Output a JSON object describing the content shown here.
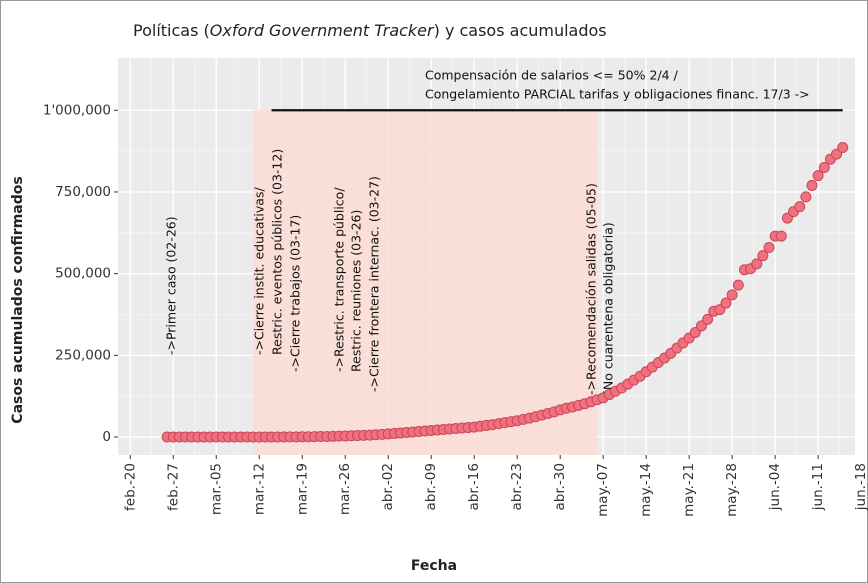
{
  "chart_data": {
    "type": "scatter",
    "title": [
      "Políticas (",
      "Oxford Government Tracker",
      ") y casos acumulados"
    ],
    "xlabel": "Fecha",
    "ylabel": "Casos acumulados confirmados",
    "xlim": [
      "02-18",
      "06-17"
    ],
    "xticks": [
      {
        "value": "02-20",
        "label": "feb.-20"
      },
      {
        "value": "02-27",
        "label": "feb.-27"
      },
      {
        "value": "03-05",
        "label": "mar.-05"
      },
      {
        "value": "03-12",
        "label": "mar.-12"
      },
      {
        "value": "03-19",
        "label": "mar.-19"
      },
      {
        "value": "03-26",
        "label": "mar.-26"
      },
      {
        "value": "04-02",
        "label": "abr.-02"
      },
      {
        "value": "04-09",
        "label": "abr.-09"
      },
      {
        "value": "04-16",
        "label": "abr.-16"
      },
      {
        "value": "04-23",
        "label": "abr.-23"
      },
      {
        "value": "04-30",
        "label": "abr.-30"
      },
      {
        "value": "05-07",
        "label": "may.-07"
      },
      {
        "value": "05-14",
        "label": "may.-14"
      },
      {
        "value": "05-21",
        "label": "may.-21"
      },
      {
        "value": "05-28",
        "label": "may.-28"
      },
      {
        "value": "06-04",
        "label": "jun.-04"
      },
      {
        "value": "06-11",
        "label": "jun.-11"
      },
      {
        "value": "06-18",
        "label": "jun.-18"
      }
    ],
    "ylim": [
      -55000,
      1160000
    ],
    "yticks": [
      0,
      {
        "value": 250000,
        "label": "250,000"
      },
      {
        "value": 500000,
        "label": "500,000"
      },
      {
        "value": 750000,
        "label": "750,000"
      },
      {
        "value": 1000000,
        "label": "1'000,000"
      }
    ],
    "grid": true,
    "color": "#f07080",
    "shaded": {
      "from": "03-11",
      "to": "05-06",
      "color": "#fddcd5"
    },
    "hline": {
      "from": "03-14",
      "to": "06-15",
      "y": 1000000
    },
    "top_note": [
      "Compensación de salarios <= 50% 2/4 /",
      "Congelamiento PARCIAL tarifas y obligaciones financ. 17/3 ->"
    ],
    "annotations": [
      "->Primer caso (02-26)",
      "->Cierre instit. educativas/",
      "Restric. eventos públicos (03-12)",
      "->Cierre trabajos (03-17)",
      "->Restric. transporte público/",
      "Restric. reuniones (03-26)",
      "->Cierre frontera internac. (03-27)",
      "->Recomendación salidas (05-05)",
      "(No cuarentena obligatoria)"
    ],
    "x": [
      "02-26",
      "02-27",
      "02-28",
      "02-29",
      "03-01",
      "03-02",
      "03-03",
      "03-04",
      "03-05",
      "03-06",
      "03-07",
      "03-08",
      "03-09",
      "03-10",
      "03-11",
      "03-12",
      "03-13",
      "03-14",
      "03-15",
      "03-16",
      "03-17",
      "03-18",
      "03-19",
      "03-20",
      "03-21",
      "03-22",
      "03-23",
      "03-24",
      "03-25",
      "03-26",
      "03-27",
      "03-28",
      "03-29",
      "03-30",
      "03-31",
      "04-01",
      "04-02",
      "04-03",
      "04-04",
      "04-05",
      "04-06",
      "04-07",
      "04-08",
      "04-09",
      "04-10",
      "04-11",
      "04-12",
      "04-13",
      "04-14",
      "04-15",
      "04-16",
      "04-17",
      "04-18",
      "04-19",
      "04-20",
      "04-21",
      "04-22",
      "04-23",
      "04-24",
      "04-25",
      "04-26",
      "04-27",
      "04-28",
      "04-29",
      "04-30",
      "05-01",
      "05-02",
      "05-03",
      "05-04",
      "05-05",
      "05-06",
      "05-07",
      "05-08",
      "05-09",
      "05-10",
      "05-11",
      "05-12",
      "05-13",
      "05-14",
      "05-15",
      "05-16",
      "05-17",
      "05-18",
      "05-19",
      "05-20",
      "05-21",
      "05-22",
      "05-23",
      "05-24",
      "05-25",
      "05-26",
      "05-27",
      "05-28",
      "05-29",
      "05-30",
      "05-31",
      "06-01",
      "06-02",
      "06-03",
      "06-04",
      "06-05",
      "06-06",
      "06-07",
      "06-08",
      "06-09",
      "06-10",
      "06-11",
      "06-12",
      "06-13",
      "06-14",
      "06-15"
    ],
    "values": [
      1,
      1,
      1,
      1,
      1,
      2,
      3,
      4,
      5,
      7,
      8,
      10,
      15,
      20,
      25,
      40,
      100,
      150,
      200,
      300,
      400,
      500,
      700,
      900,
      1200,
      1500,
      1800,
      2200,
      2700,
      3200,
      3800,
      4500,
      5200,
      6000,
      7000,
      8000,
      9500,
      11000,
      12500,
      14000,
      15500,
      17000,
      18500,
      20000,
      21500,
      23000,
      24500,
      26000,
      27500,
      29000,
      30500,
      33000,
      35500,
      38000,
      41000,
      44000,
      47000,
      50000,
      54000,
      58000,
      62000,
      67000,
      72000,
      77000,
      83000,
      88000,
      92000,
      97000,
      102000,
      108000,
      114000,
      120000,
      130000,
      140000,
      150000,
      162000,
      174000,
      186000,
      200000,
      214000,
      228000,
      242000,
      256000,
      272000,
      288000,
      303000,
      320000,
      340000,
      360000,
      385000,
      390000,
      410000,
      435000,
      465000,
      512000,
      515000,
      530000,
      555000,
      580000,
      615000,
      615000,
      670000,
      690000,
      705000,
      735000,
      770000,
      800000,
      825000,
      850000,
      866000,
      886000
    ]
  }
}
